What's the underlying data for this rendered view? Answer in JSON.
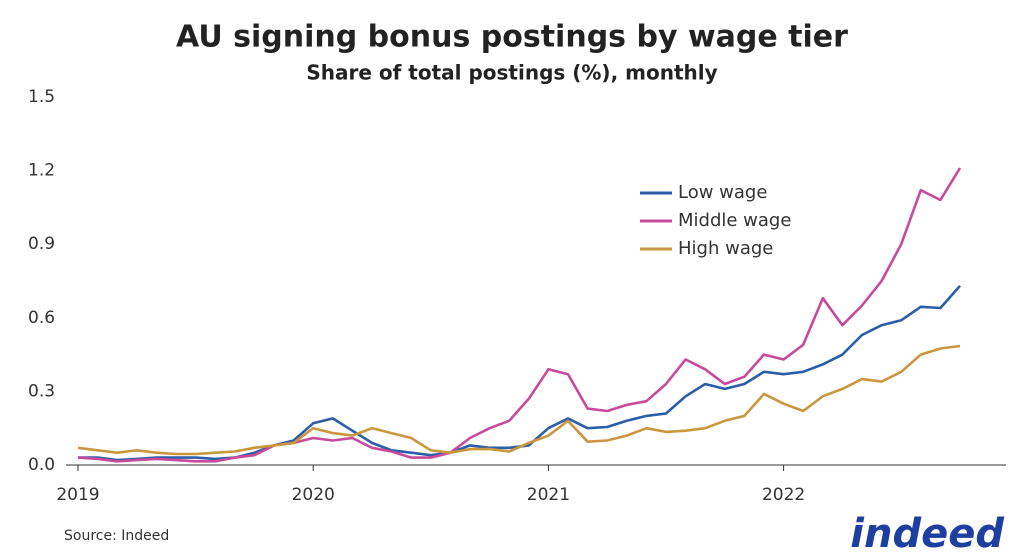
{
  "chart_data": {
    "type": "line",
    "title": "AU signing bonus postings by wage tier",
    "subtitle": "Share of total postings (%), monthly",
    "categories": [
      "2019",
      null,
      null,
      null,
      null,
      null,
      null,
      null,
      null,
      null,
      null,
      null,
      "2020",
      null,
      null,
      null,
      null,
      null,
      null,
      null,
      null,
      null,
      null,
      null,
      "2021",
      null,
      null,
      null,
      null,
      null,
      null,
      null,
      null,
      null,
      null,
      null,
      "2022",
      null,
      null,
      null,
      null,
      null,
      null,
      null,
      null,
      null
    ],
    "series": [
      {
        "name": "Low wage",
        "color": "#2c5ea8",
        "values": [
          0.03,
          0.03,
          0.02,
          0.025,
          0.03,
          0.03,
          0.03,
          0.025,
          0.03,
          0.05,
          0.08,
          0.1,
          0.17,
          0.19,
          0.14,
          0.09,
          0.06,
          0.05,
          0.04,
          0.05,
          0.08,
          0.07,
          0.07,
          0.08,
          0.15,
          0.19,
          0.15,
          0.155,
          0.18,
          0.2,
          0.21,
          0.28,
          0.33,
          0.31,
          0.33,
          0.38,
          0.37,
          0.38,
          0.41,
          0.45,
          0.53,
          0.57,
          0.59,
          0.645,
          0.64,
          0.73
        ]
      },
      {
        "name": "Middle wage",
        "color": "#c84a9c",
        "values": [
          0.03,
          0.025,
          0.015,
          0.02,
          0.025,
          0.02,
          0.015,
          0.015,
          0.03,
          0.04,
          0.08,
          0.09,
          0.11,
          0.1,
          0.11,
          0.07,
          0.055,
          0.03,
          0.03,
          0.05,
          0.11,
          0.15,
          0.18,
          0.27,
          0.39,
          0.37,
          0.23,
          0.22,
          0.245,
          0.26,
          0.33,
          0.43,
          0.39,
          0.33,
          0.36,
          0.45,
          0.43,
          0.49,
          0.68,
          0.57,
          0.65,
          0.75,
          0.9,
          1.12,
          1.08,
          1.21
        ]
      },
      {
        "name": "High wage",
        "color": "#c9973f",
        "values": [
          0.07,
          0.06,
          0.05,
          0.06,
          0.05,
          0.045,
          0.045,
          0.05,
          0.055,
          0.07,
          0.08,
          0.09,
          0.15,
          0.13,
          0.12,
          0.15,
          0.13,
          0.11,
          0.06,
          0.05,
          0.065,
          0.065,
          0.055,
          0.09,
          0.12,
          0.18,
          0.095,
          0.1,
          0.12,
          0.15,
          0.135,
          0.14,
          0.15,
          0.18,
          0.2,
          0.29,
          0.25,
          0.22,
          0.28,
          0.31,
          0.35,
          0.34,
          0.38,
          0.45,
          0.475,
          0.485
        ]
      }
    ],
    "ylim": [
      0,
      1.5
    ],
    "yticks": [
      {
        "value": 0,
        "label": "0.0"
      },
      0.3,
      0.6,
      0.9,
      1.2,
      1.5
    ],
    "grid": false,
    "legend": "upper right",
    "source": "Source: Indeed",
    "logo": "indeed"
  }
}
